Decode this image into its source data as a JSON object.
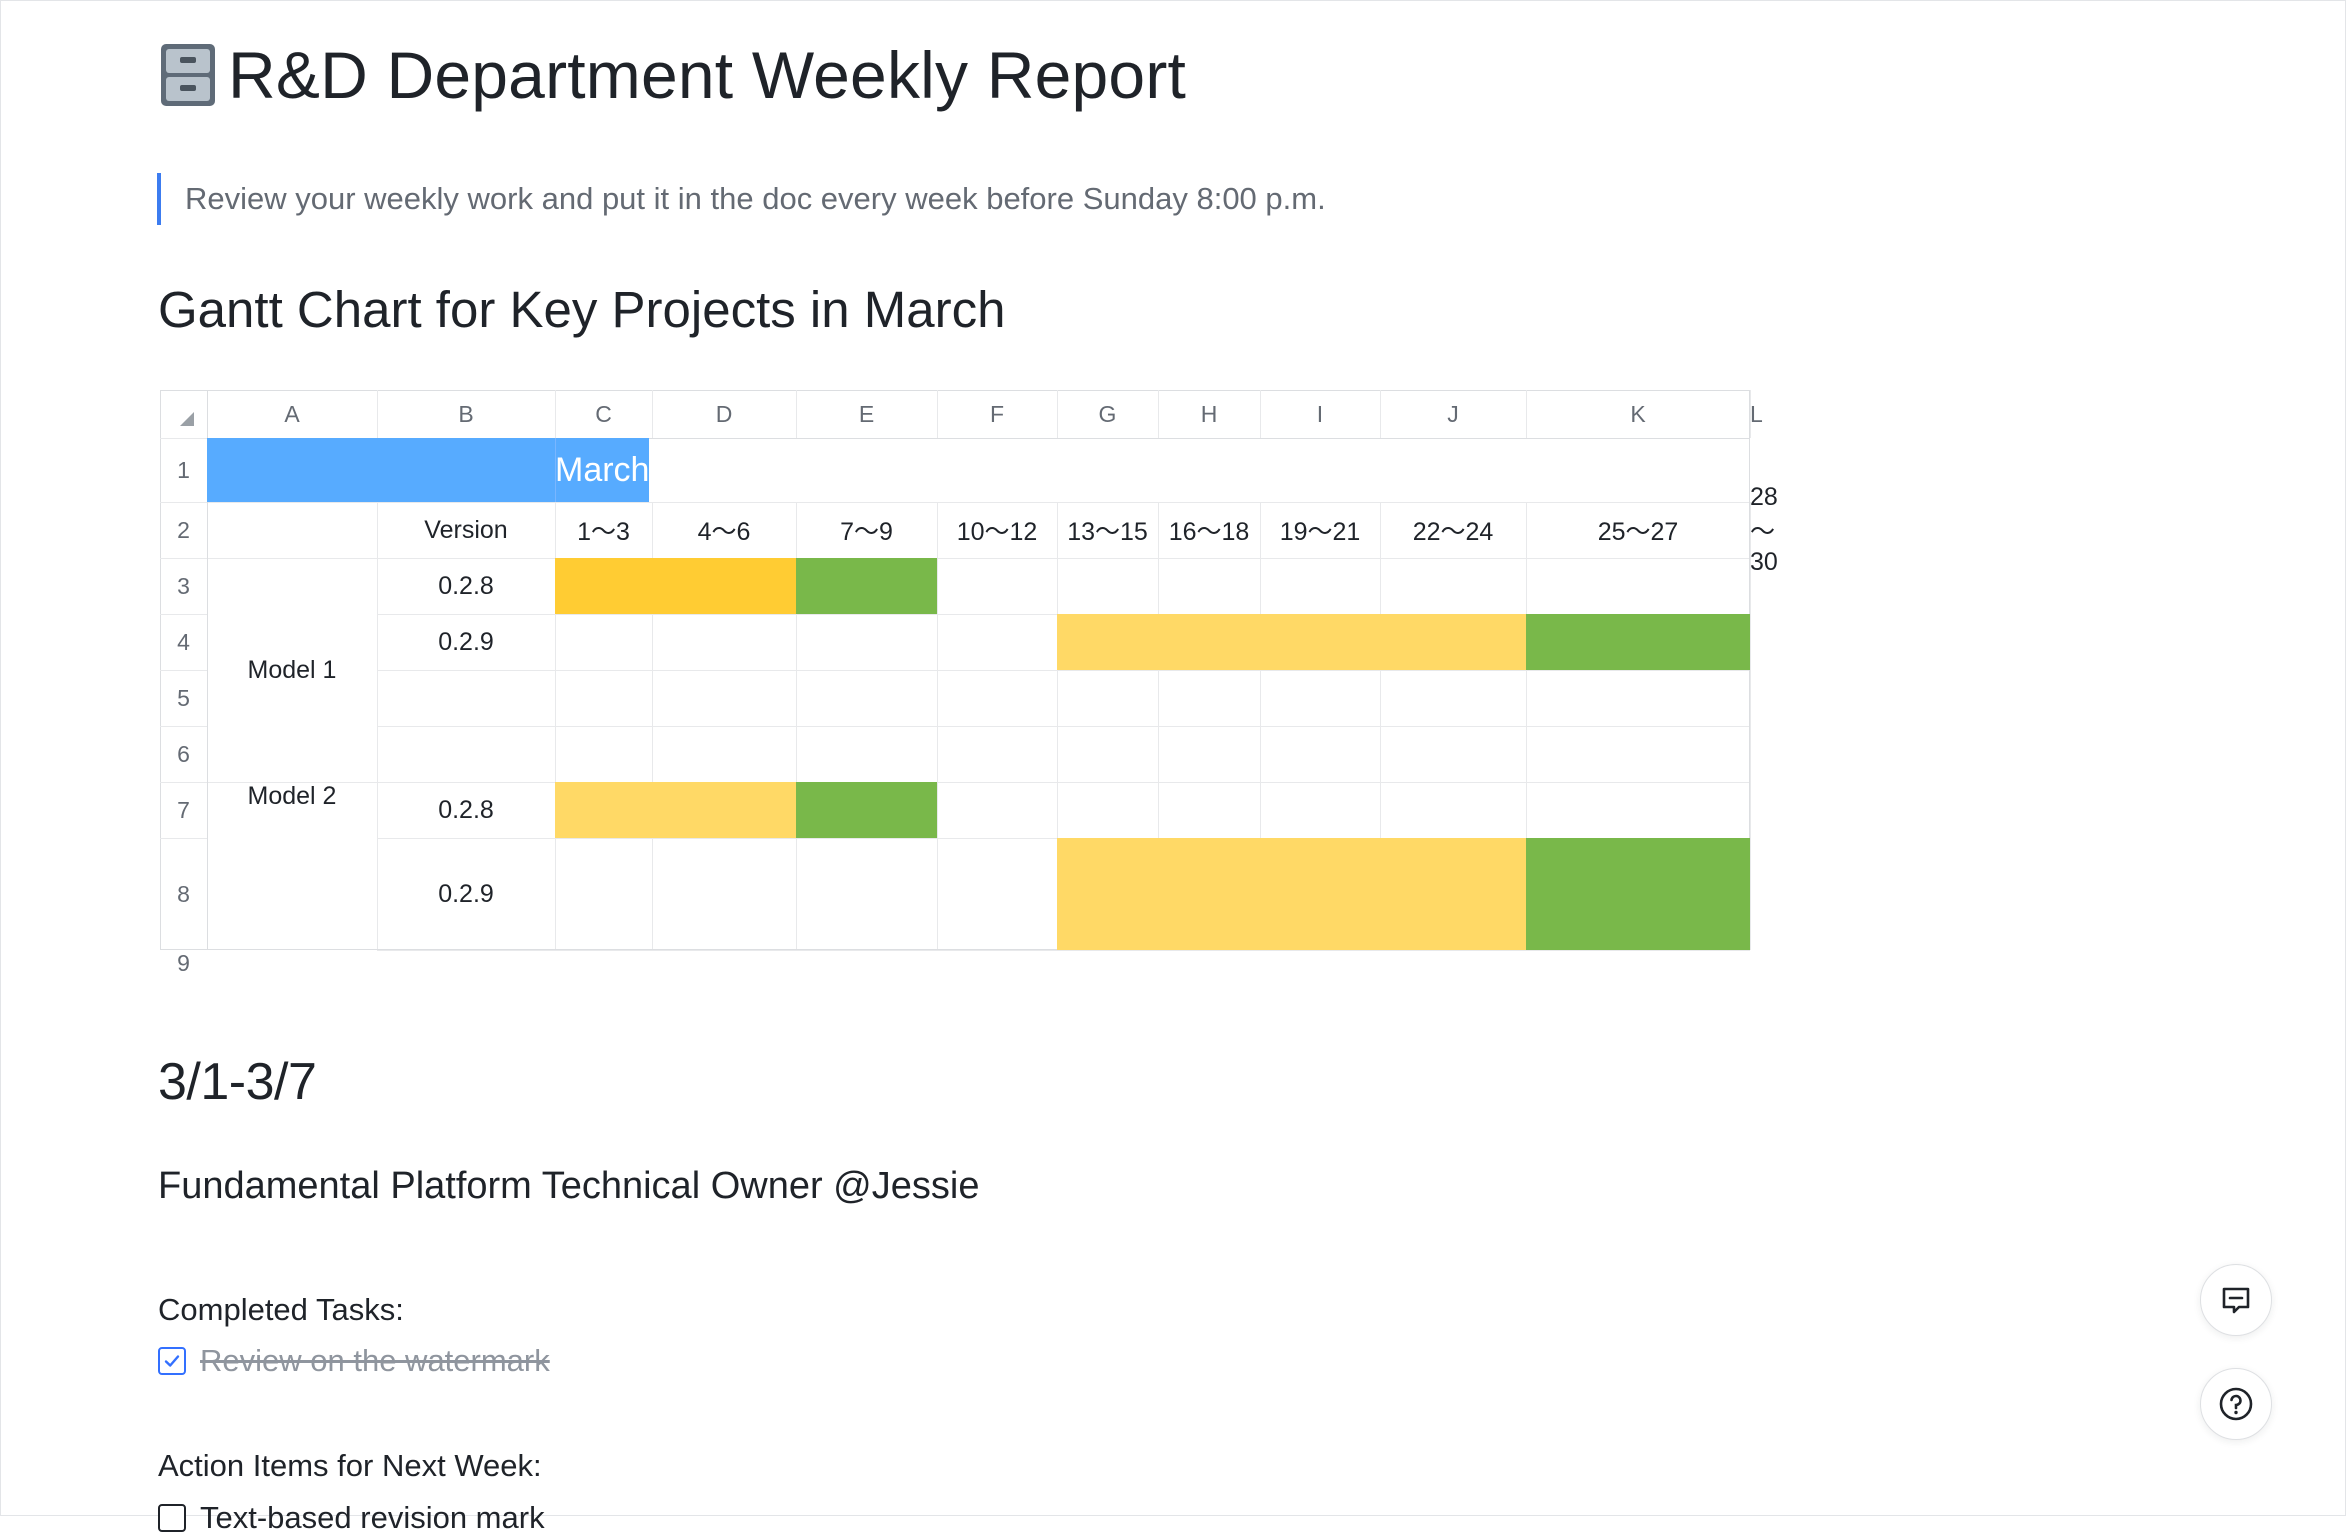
{
  "document": {
    "title": "R&D Department Weekly Report",
    "title_icon": "filing-cabinet-icon",
    "quote": "Review your weekly work and put it in the doc every week before Sunday 8:00 p.m.",
    "gantt_heading": "Gantt Chart for Key Projects in March",
    "week_heading": "3/1-3/7",
    "owner_heading": "Fundamental Platform Technical Owner @Jessie",
    "completed_label": "Completed Tasks:",
    "completed_tasks": [
      {
        "text": "Review on the watermark",
        "checked": true
      }
    ],
    "action_label": "Action Items for Next Week:",
    "action_items": [
      {
        "text": "Text-based revision mark",
        "checked": false
      }
    ]
  },
  "sheet": {
    "columns": [
      "A",
      "B",
      "C",
      "D",
      "E",
      "F",
      "G",
      "H",
      "I",
      "J",
      "K",
      "L"
    ],
    "rows": [
      "1",
      "2",
      "3",
      "4",
      "5",
      "6",
      "7",
      "8",
      "9"
    ],
    "month": "March",
    "version_header": "Version",
    "periods": [
      "1～3",
      "4～6",
      "7～9",
      "10～12",
      "13～15",
      "16～18",
      "19～21",
      "22～24",
      "25～27",
      "28～30"
    ],
    "models": [
      {
        "name": "Model 1",
        "versions": [
          "0.2.8",
          "0.2.9"
        ]
      },
      {
        "name": "Model 2",
        "versions": [
          "0.2.8",
          "0.2.9"
        ]
      }
    ]
  },
  "chart_data": {
    "type": "table",
    "title": "",
    "categories": [
      "1～3",
      "4～6",
      "7～9",
      "10～12",
      "13～15",
      "16～18",
      "19～21",
      "22～24",
      "25～27",
      "28～30"
    ],
    "tasks": [
      {
        "model": "Model 1",
        "version": "0.2.8",
        "segments": [
          {
            "start": "1～3",
            "end": "4～6",
            "color": "#ffcc33"
          },
          {
            "start": "7～9",
            "end": "7～9",
            "color": "#79b84a"
          }
        ]
      },
      {
        "model": "Model 1",
        "version": "0.2.9",
        "segments": [
          {
            "start": "13～15",
            "end": "22～24",
            "color": "#ffd966"
          },
          {
            "start": "25～27",
            "end": "25～27",
            "color": "#79b84a"
          }
        ]
      },
      {
        "model": "Model 2",
        "version": "0.2.8",
        "segments": [
          {
            "start": "1～3",
            "end": "4～6",
            "color": "#ffd966"
          },
          {
            "start": "7～9",
            "end": "7～9",
            "color": "#79b84a"
          }
        ]
      },
      {
        "model": "Model 2",
        "version": "0.2.9",
        "segments": [
          {
            "start": "13～15",
            "end": "22～24",
            "color": "#ffd966"
          },
          {
            "start": "25～27",
            "end": "25～27",
            "color": "#79b84a"
          }
        ]
      }
    ],
    "header_color": "#57abff"
  },
  "ui": {
    "comment_icon": "comment-icon",
    "help_icon": "help-icon"
  }
}
